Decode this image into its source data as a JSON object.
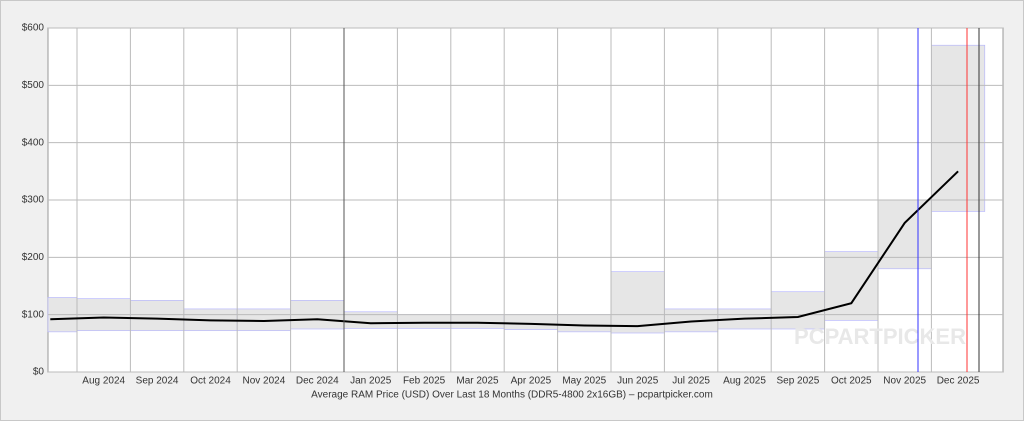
{
  "chart_data": {
    "type": "line",
    "xlabel": "Average RAM Price (USD) Over Last 18 Months (DDR5-4800 2x16GB) – pcpartpicker.com",
    "watermark": "PCPARTPICKER",
    "categories": [
      null,
      "Aug 2024",
      "Sep 2024",
      "Oct 2024",
      "Nov 2024",
      "Dec 2024",
      "Jan 2025",
      "Feb 2025",
      "Mar 2025",
      "Apr 2025",
      "May 2025",
      "Jun 2025",
      "Jul 2025",
      "Aug 2025",
      "Sep 2025",
      "Oct 2025",
      "Nov 2025",
      "Dec 2025"
    ],
    "values": [
      92,
      95,
      93,
      90,
      89,
      92,
      85,
      86,
      86,
      84,
      81,
      80,
      88,
      93,
      96,
      120,
      260,
      350
    ],
    "low": [
      70,
      72,
      72,
      72,
      72,
      75,
      76,
      76,
      76,
      74,
      70,
      68,
      70,
      75,
      75,
      90,
      180,
      280
    ],
    "high": [
      130,
      128,
      125,
      110,
      110,
      125,
      105,
      100,
      100,
      100,
      100,
      175,
      110,
      110,
      140,
      210,
      300,
      570
    ],
    "color": "#000000",
    "range_color": "#e6e6e6",
    "ylim": [
      0,
      600
    ],
    "yticks": [
      {
        "value": 0,
        "label": "$0"
      },
      {
        "value": 100,
        "label": "$100"
      },
      {
        "value": 200,
        "label": "$200"
      },
      {
        "value": 300,
        "label": "$300"
      },
      {
        "value": 400,
        "label": "$400"
      },
      {
        "value": 500,
        "label": "$500"
      },
      {
        "value": 600,
        "label": "$600"
      }
    ],
    "grid": true
  }
}
